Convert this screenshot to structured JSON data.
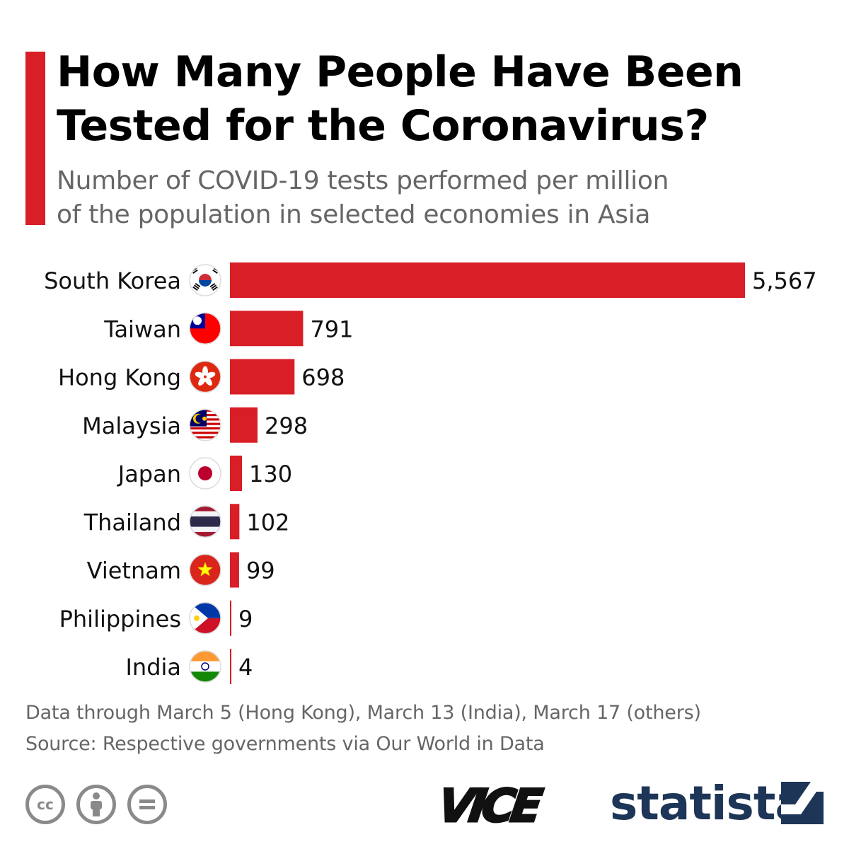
{
  "header": {
    "title": "How Many People Have Been Tested for the Coronavirus?",
    "subtitle_line1": "Number of COVID-19 tests performed per million",
    "subtitle_line2": "of the population in selected economies in Asia"
  },
  "chart_data": {
    "type": "bar",
    "orientation": "horizontal",
    "title": "How Many People Have Been Tested for the Coronavirus?",
    "subtitle": "Number of COVID-19 tests performed per million of the population in selected economies in Asia",
    "categories": [
      "South Korea",
      "Taiwan",
      "Hong Kong",
      "Malaysia",
      "Japan",
      "Thailand",
      "Vietnam",
      "Philippines",
      "India"
    ],
    "values": [
      5567,
      791,
      698,
      298,
      130,
      102,
      99,
      9,
      4
    ],
    "value_labels": [
      "5,567",
      "791",
      "698",
      "298",
      "130",
      "102",
      "99",
      "9",
      "4"
    ],
    "flag_icons": [
      "south-korea-flag-icon",
      "taiwan-flag-icon",
      "hong-kong-flag-icon",
      "malaysia-flag-icon",
      "japan-flag-icon",
      "thailand-flag-icon",
      "vietnam-flag-icon",
      "philippines-flag-icon",
      "india-flag-icon"
    ],
    "xlim": [
      0,
      5567
    ],
    "grid": false,
    "legend": false,
    "bar_color": "#d81e27"
  },
  "footnotes": {
    "note": "Data through March 5 (Hong Kong), March 13 (India), March 17 (others)",
    "source": "Source: Respective governments via Our World in Data"
  },
  "footer": {
    "license_icons": [
      "creative-commons-icon",
      "attribution-icon",
      "no-derivatives-icon"
    ],
    "cc_label": "cc",
    "partner_logo": "VICE",
    "brand": "statista"
  },
  "colors": {
    "accent": "#d81e27",
    "brand": "#1d3557",
    "muted_text": "#666666"
  }
}
